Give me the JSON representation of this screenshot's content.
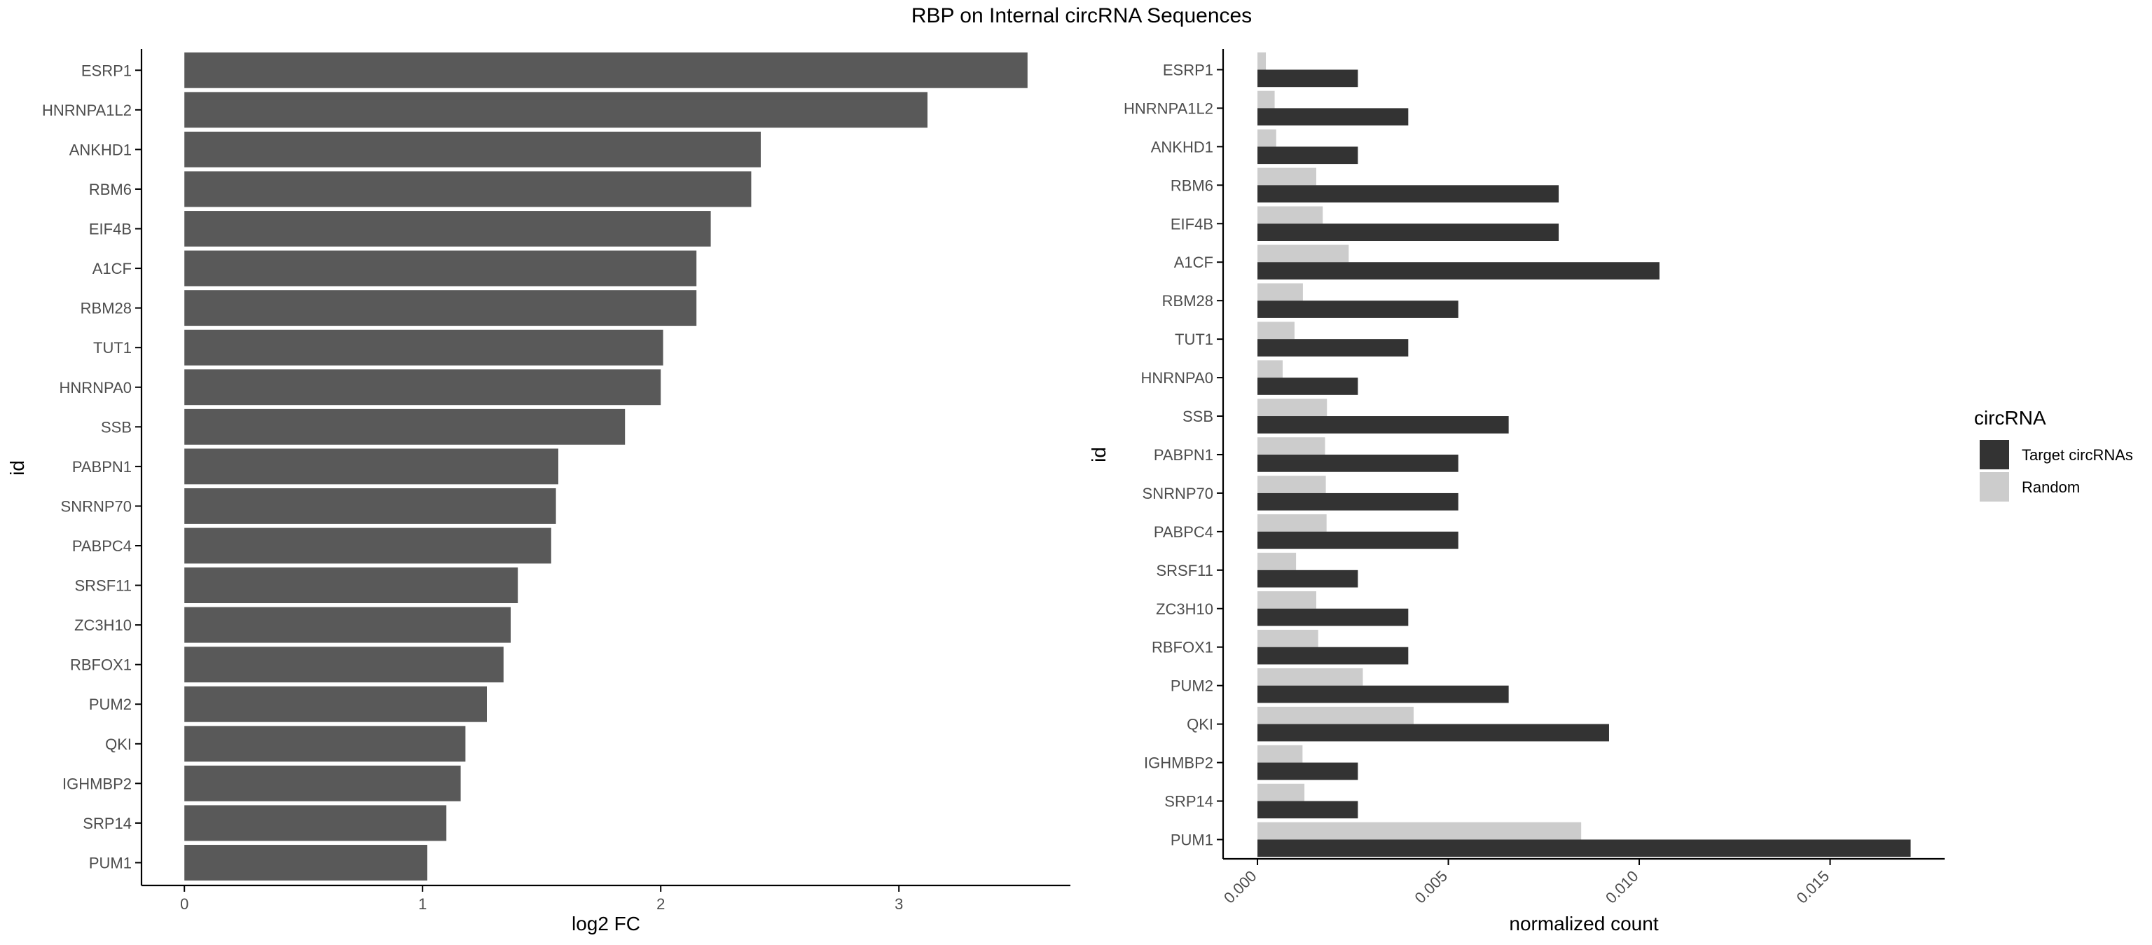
{
  "title": "RBP on Internal circRNA Sequences",
  "colors": {
    "left_bar": "#595959",
    "target": "#333333",
    "random": "#cccccc",
    "axis": "#000000",
    "tick_text": "#4d4d4d"
  },
  "chart_data": [
    {
      "type": "bar",
      "orientation": "horizontal",
      "xlabel": "log2 FC",
      "ylabel": "id",
      "xlim": [
        -0.18,
        3.72
      ],
      "x_ticks": [
        "0",
        "1",
        "2",
        "3"
      ],
      "x_tick_values": [
        0,
        1,
        2,
        3
      ],
      "grid": false,
      "categories": [
        "ESRP1",
        "HNRNPA1L2",
        "ANKHD1",
        "RBM6",
        "EIF4B",
        "A1CF",
        "RBM28",
        "TUT1",
        "HNRNPA0",
        "SSB",
        "PABPN1",
        "SNRNP70",
        "PABPC4",
        "SRSF11",
        "ZC3H10",
        "RBFOX1",
        "PUM2",
        "QKI",
        "IGHMBP2",
        "SRP14",
        "PUM1"
      ],
      "values": [
        3.54,
        3.12,
        2.42,
        2.38,
        2.21,
        2.15,
        2.15,
        2.01,
        2.0,
        1.85,
        1.57,
        1.56,
        1.54,
        1.4,
        1.37,
        1.34,
        1.27,
        1.18,
        1.16,
        1.1,
        1.02
      ]
    },
    {
      "type": "bar",
      "orientation": "horizontal",
      "xlabel": "normalized count",
      "ylabel": "id",
      "xlim": [
        -0.0009,
        0.018
      ],
      "x_ticks": [
        "0.000",
        "0.005",
        "0.010",
        "0.015"
      ],
      "x_tick_values": [
        0,
        0.005,
        0.01,
        0.015
      ],
      "grid": false,
      "legend_title": "circRNA",
      "legend_position": "right",
      "categories": [
        "ESRP1",
        "HNRNPA1L2",
        "ANKHD1",
        "RBM6",
        "EIF4B",
        "A1CF",
        "RBM28",
        "TUT1",
        "HNRNPA0",
        "SSB",
        "PABPN1",
        "SNRNP70",
        "PABPC4",
        "SRSF11",
        "ZC3H10",
        "RBFOX1",
        "PUM2",
        "QKI",
        "IGHMBP2",
        "SRP14",
        "PUM1"
      ],
      "series": [
        {
          "name": "Target circRNAs",
          "values": [
            0.00263,
            0.00395,
            0.00263,
            0.00789,
            0.00789,
            0.01053,
            0.00526,
            0.00395,
            0.00263,
            0.00658,
            0.00526,
            0.00526,
            0.00526,
            0.00263,
            0.00395,
            0.00395,
            0.00658,
            0.00921,
            0.00263,
            0.00263,
            0.01711
          ]
        },
        {
          "name": "Random",
          "values": [
            0.00022,
            0.00045,
            0.00049,
            0.00154,
            0.00171,
            0.00239,
            0.00119,
            0.00097,
            0.00066,
            0.00182,
            0.00177,
            0.00179,
            0.00181,
            0.00101,
            0.00154,
            0.00159,
            0.00276,
            0.00409,
            0.00118,
            0.00123,
            0.00848
          ]
        }
      ]
    }
  ]
}
